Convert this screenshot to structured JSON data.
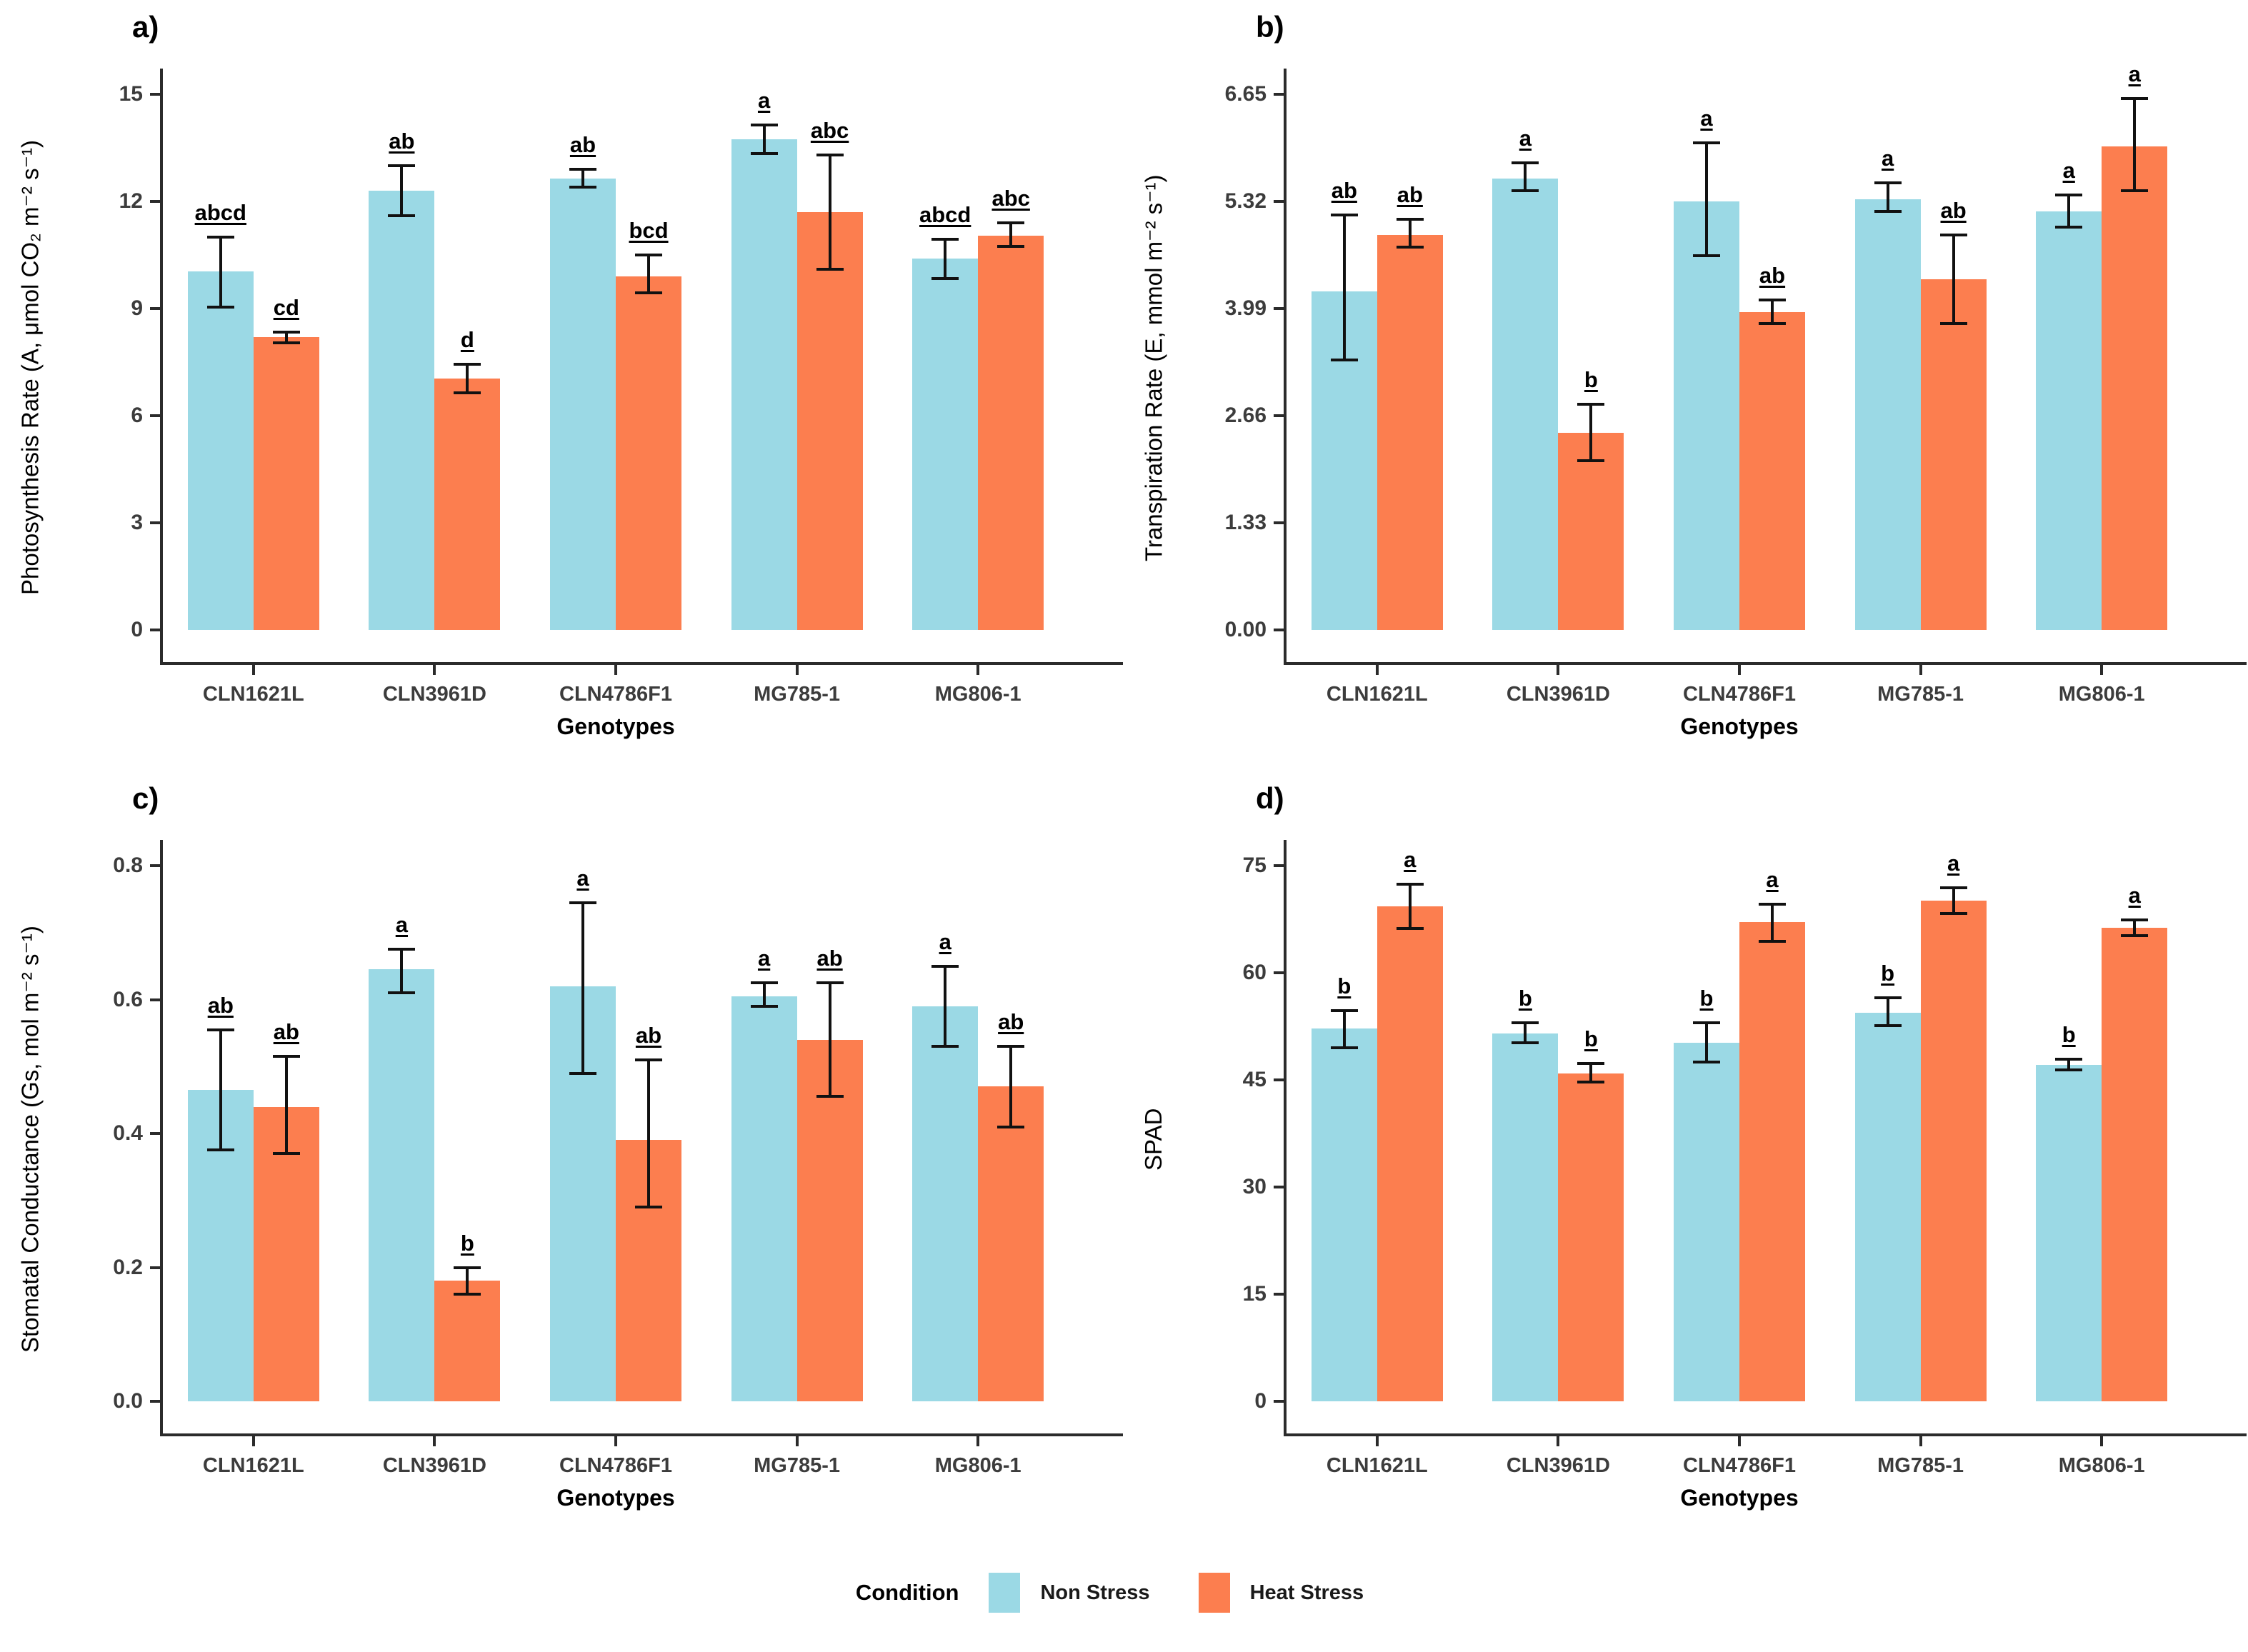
{
  "colors": {
    "non_stress": "#9BD9E5",
    "heat_stress": "#FC7E4F",
    "axis": "#2b2b2b",
    "error_bar": "#111111",
    "tick_text": "#3c3c3c"
  },
  "legend": {
    "title": "Condition",
    "items": [
      {
        "label": "Non Stress",
        "color": "#9BD9E5"
      },
      {
        "label": "Heat Stress",
        "color": "#FC7E4F"
      }
    ]
  },
  "chart_data": [
    {
      "panel_letter": "a)",
      "type": "bar",
      "title": "",
      "ylabel": "Photosynthesis Rate (A, μmol CO₂ m⁻² s⁻¹)",
      "xlabel": "Genotypes",
      "legend_position": "bottom-shared",
      "grid": false,
      "categories": [
        "CLN1621L",
        "CLN3961D",
        "CLN4786F1",
        "MG785-1",
        "MG806-1"
      ],
      "yticks": [
        0,
        3,
        6,
        9,
        12,
        15
      ],
      "ytick_labels": [
        "0",
        "3",
        "6",
        "9",
        "12",
        "15"
      ],
      "ylim": [
        0,
        15
      ],
      "series": [
        {
          "name": "Non Stress",
          "values": [
            10.05,
            12.3,
            12.65,
            13.75,
            10.4
          ],
          "err_low": [
            9.05,
            11.6,
            12.4,
            13.35,
            9.85
          ],
          "err_high": [
            11.0,
            13.0,
            12.9,
            14.15,
            10.95
          ],
          "letters": [
            "abcd",
            "ab",
            "ab",
            "a",
            "abcd"
          ]
        },
        {
          "name": "Heat Stress",
          "values": [
            8.2,
            7.05,
            9.9,
            11.7,
            11.05
          ],
          "err_low": [
            8.05,
            6.65,
            9.45,
            10.1,
            10.75
          ],
          "err_high": [
            8.35,
            7.45,
            10.5,
            13.3,
            11.4
          ],
          "letters": [
            "cd",
            "d",
            "bcd",
            "abc",
            "abc"
          ]
        }
      ]
    },
    {
      "panel_letter": "b)",
      "type": "bar",
      "title": "",
      "ylabel": "Transpiration Rate (E, mmol m⁻² s⁻¹)",
      "xlabel": "Genotypes",
      "legend_position": "bottom-shared",
      "grid": false,
      "categories": [
        "CLN1621L",
        "CLN3961D",
        "CLN4786F1",
        "MG785-1",
        "MG806-1"
      ],
      "yticks": [
        0,
        1.33,
        2.66,
        3.99,
        5.32,
        6.65
      ],
      "ytick_labels": [
        "0.00",
        "1.33",
        "2.66",
        "3.99",
        "5.32",
        "6.65"
      ],
      "ylim": [
        0,
        6.65
      ],
      "series": [
        {
          "name": "Non Stress",
          "values": [
            4.2,
            5.6,
            5.32,
            5.35,
            5.2
          ],
          "err_low": [
            3.35,
            5.45,
            4.65,
            5.2,
            5.0
          ],
          "err_high": [
            5.15,
            5.8,
            6.05,
            5.55,
            5.4
          ],
          "letters": [
            "ab",
            "a",
            "a",
            "a",
            "a"
          ]
        },
        {
          "name": "Heat Stress",
          "values": [
            4.9,
            2.45,
            3.95,
            4.35,
            6.0
          ],
          "err_low": [
            4.75,
            2.1,
            3.8,
            3.8,
            5.45
          ],
          "err_high": [
            5.1,
            2.8,
            4.1,
            4.9,
            6.6
          ],
          "letters": [
            "ab",
            "b",
            "ab",
            "ab",
            "a"
          ]
        }
      ]
    },
    {
      "panel_letter": "c)",
      "type": "bar",
      "title": "",
      "ylabel": "Stomatal Conductance (Gs, mol m⁻² s⁻¹)",
      "xlabel": "Genotypes",
      "legend_position": "bottom-shared",
      "grid": false,
      "categories": [
        "CLN1621L",
        "CLN3961D",
        "CLN4786F1",
        "MG785-1",
        "MG806-1"
      ],
      "yticks": [
        0,
        0.2,
        0.4,
        0.6,
        0.8
      ],
      "ytick_labels": [
        "0.0",
        "0.2",
        "0.4",
        "0.6",
        "0.8"
      ],
      "ylim": [
        0,
        0.8
      ],
      "series": [
        {
          "name": "Non Stress",
          "values": [
            0.465,
            0.645,
            0.62,
            0.605,
            0.59
          ],
          "err_low": [
            0.375,
            0.61,
            0.49,
            0.59,
            0.53
          ],
          "err_high": [
            0.555,
            0.675,
            0.745,
            0.625,
            0.65
          ],
          "letters": [
            "ab",
            "a",
            "a",
            "a",
            "a"
          ]
        },
        {
          "name": "Heat Stress",
          "values": [
            0.44,
            0.18,
            0.39,
            0.54,
            0.47
          ],
          "err_low": [
            0.37,
            0.16,
            0.29,
            0.455,
            0.41
          ],
          "err_high": [
            0.515,
            0.2,
            0.51,
            0.625,
            0.53
          ],
          "letters": [
            "ab",
            "b",
            "ab",
            "ab",
            "ab"
          ]
        }
      ]
    },
    {
      "panel_letter": "d)",
      "type": "bar",
      "title": "",
      "ylabel": "SPAD",
      "xlabel": "Genotypes",
      "legend_position": "bottom-shared",
      "grid": false,
      "categories": [
        "CLN1621L",
        "CLN3961D",
        "CLN4786F1",
        "MG785-1",
        "MG806-1"
      ],
      "yticks": [
        0,
        15,
        30,
        45,
        60,
        75
      ],
      "ytick_labels": [
        "0",
        "15",
        "30",
        "45",
        "60",
        "75"
      ],
      "ylim": [
        0,
        75
      ],
      "series": [
        {
          "name": "Non Stress",
          "values": [
            52.2,
            51.5,
            50.2,
            54.4,
            47.1
          ],
          "err_low": [
            49.5,
            50.2,
            47.5,
            52.6,
            46.4
          ],
          "err_high": [
            54.7,
            53.0,
            53.0,
            56.5,
            47.9
          ],
          "letters": [
            "b",
            "b",
            "b",
            "b",
            "b"
          ]
        },
        {
          "name": "Heat Stress",
          "values": [
            69.3,
            45.9,
            67.1,
            70.1,
            66.3
          ],
          "err_low": [
            66.2,
            44.7,
            64.4,
            68.3,
            65.2
          ],
          "err_high": [
            72.4,
            47.3,
            69.6,
            71.9,
            67.4
          ],
          "letters": [
            "a",
            "b",
            "a",
            "a",
            "a"
          ]
        }
      ]
    }
  ]
}
